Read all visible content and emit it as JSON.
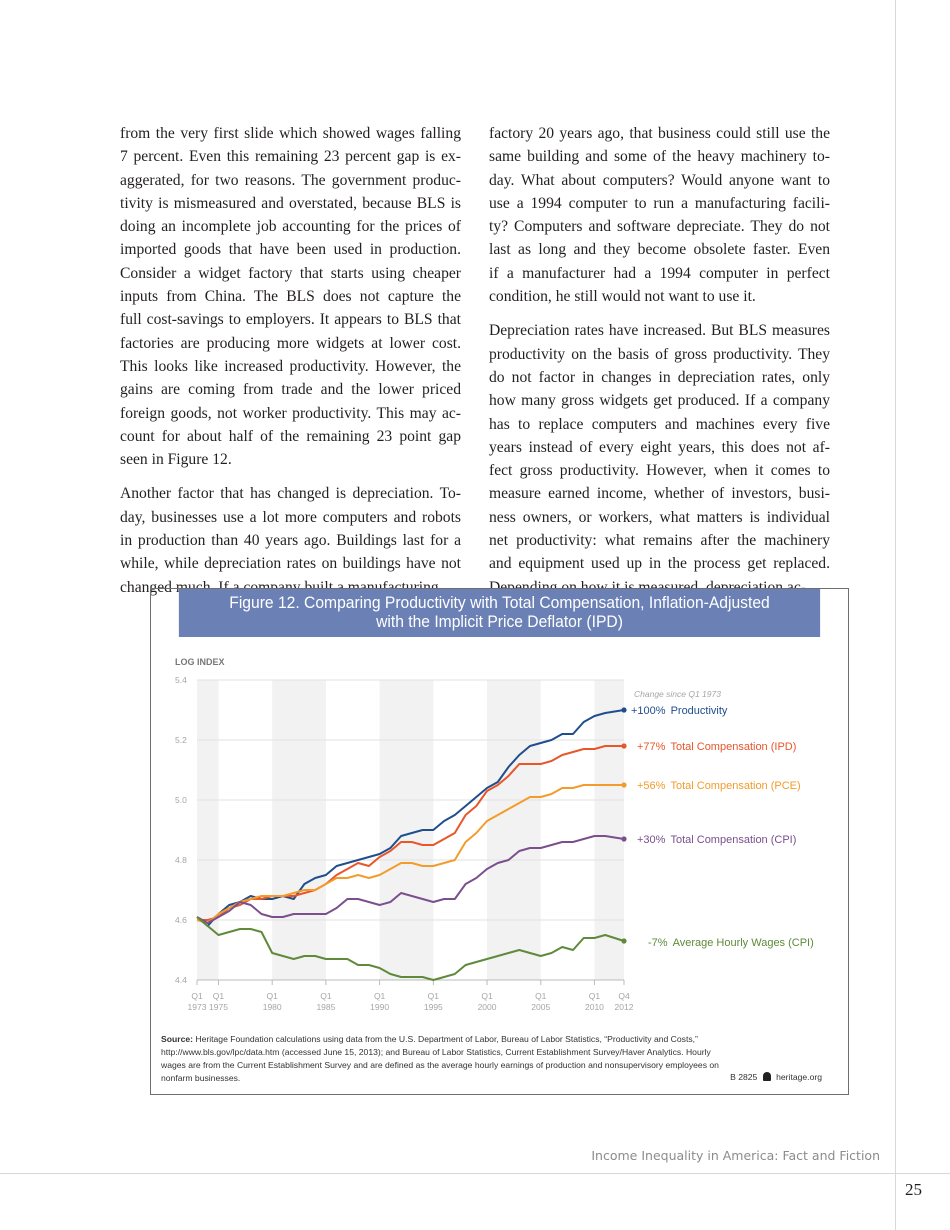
{
  "body": {
    "left_column": [
      [
        "from the very first slide which showed wages falling",
        "7 percent. Even this remaining 23 percent gap is ex-",
        "aggerated, for two reasons. The government produc-",
        "tivity is mismeasured and overstated, because BLS is",
        "doing an incomplete job accounting for the prices of",
        "imported goods that have been used in production.",
        "Consider a widget factory that starts using cheaper",
        "inputs from China. The BLS does not capture the",
        "full cost-savings to employers. It appears to BLS that",
        "factories are producing more widgets at lower cost.",
        "This looks like increased productivity. However, the",
        "gains are coming from trade and the lower priced",
        "foreign goods, not worker productivity. This may ac-",
        "count for about half of the remaining 23 point gap",
        "seen in Figure 12."
      ],
      [
        "Another factor that has changed is depreciation. To-",
        "day, businesses use a lot more computers and robots",
        "in production than 40 years ago. Buildings last for a",
        "while, while depreciation rates on buildings have not",
        "changed much. If a company built a manufacturing"
      ]
    ],
    "right_column": [
      [
        "factory 20 years ago, that business could still use the",
        "same building and some of the heavy machinery to-",
        "day. What about computers? Would anyone want to",
        "use a 1994 computer to run a manufacturing facili-",
        "ty? Computers and software depreciate. They do not",
        "last as long and they become obsolete faster. Even",
        "if a manufacturer had a 1994 computer in perfect",
        "condition, he still would not want to use it."
      ],
      [
        "Depreciation rates have increased. But BLS measures",
        "productivity on the basis of gross productivity. They",
        "do not factor in changes in depreciation rates, only",
        "how many gross widgets get produced. If a company",
        "has to replace computers and machines every five",
        "years instead of every eight years, this does not af-",
        "fect gross productivity. However, when it comes to",
        "measure earned income, whether of investors, busi-",
        "ness owners, or workers, what matters is individual",
        "net productivity: what remains after the machinery",
        "and equipment used up in the process get replaced.",
        "Depending on how it is measured, depreciation ac-"
      ]
    ]
  },
  "figure": {
    "title_line1": "Figure 12. Comparing Productivity with Total Compensation, Inflation-Adjusted",
    "title_line2": "with the Implicit Price Deflator (IPD)",
    "header_color": "#6b80b4",
    "source_label": "Source:",
    "source_text": " Heritage Foundation calculations using data from the U.S. Department of Labor, Bureau of Labor Statistics, “Productivity and Costs,” http://www.bls.gov/lpc/data.htm (accessed June 15, 2013); and Bureau of Labor Statistics, Current Establishment Survey/Haver Analytics. Hourly wages are from the Current Establishment Survey and are defined as the average hourly earnings of production and nonsupervisory employees on nonfarm businesses.",
    "credit_code": "B 2825",
    "credit_icon": "liberty-bell-icon",
    "credit_site": "heritage.org"
  },
  "chart_data": {
    "type": "line",
    "ylabel": "LOG INDEX",
    "ylim": [
      4.4,
      5.4
    ],
    "yticks": [
      "5.4",
      "5.2",
      "5.0",
      "4.8",
      "4.6",
      "4.4"
    ],
    "xlim": [
      1973,
      2012.75
    ],
    "xticks": [
      {
        "x": 1973,
        "q": "Q1",
        "year": "1973"
      },
      {
        "x": 1975,
        "q": "Q1",
        "year": "1975"
      },
      {
        "x": 1980,
        "q": "Q1",
        "year": "1980"
      },
      {
        "x": 1985,
        "q": "Q1",
        "year": "1985"
      },
      {
        "x": 1990,
        "q": "Q1",
        "year": "1990"
      },
      {
        "x": 1995,
        "q": "Q1",
        "year": "1995"
      },
      {
        "x": 2000,
        "q": "Q1",
        "year": "2000"
      },
      {
        "x": 2005,
        "q": "Q1",
        "year": "2005"
      },
      {
        "x": 2010,
        "q": "Q1",
        "year": "2010"
      },
      {
        "x": 2012.75,
        "q": "Q4",
        "year": "2012"
      }
    ],
    "shaded_bands": [
      [
        1973,
        1975
      ],
      [
        1980,
        1985
      ],
      [
        1990,
        1995
      ],
      [
        2000,
        2005
      ],
      [
        2010,
        2012.75
      ]
    ],
    "grid": true,
    "annotation": "Change since Q1 1973",
    "x": [
      1973,
      1974,
      1975,
      1976,
      1977,
      1978,
      1979,
      1980,
      1981,
      1982,
      1983,
      1984,
      1985,
      1986,
      1987,
      1988,
      1989,
      1990,
      1991,
      1992,
      1993,
      1994,
      1995,
      1996,
      1997,
      1998,
      1999,
      2000,
      2001,
      2002,
      2003,
      2004,
      2005,
      2006,
      2007,
      2008,
      2009,
      2010,
      2011,
      2012.75
    ],
    "series": [
      {
        "name": "Productivity",
        "change": "+100%",
        "color": "#1f4e8c",
        "values": [
          4.61,
          4.58,
          4.62,
          4.65,
          4.66,
          4.68,
          4.67,
          4.67,
          4.68,
          4.67,
          4.72,
          4.74,
          4.75,
          4.78,
          4.79,
          4.8,
          4.81,
          4.82,
          4.84,
          4.88,
          4.89,
          4.9,
          4.9,
          4.93,
          4.95,
          4.98,
          5.01,
          5.04,
          5.06,
          5.11,
          5.15,
          5.18,
          5.19,
          5.2,
          5.22,
          5.22,
          5.26,
          5.28,
          5.29,
          5.3
        ]
      },
      {
        "name": "Total Compensation (IPD)",
        "change": "+77%",
        "color": "#e8562a",
        "values": [
          4.6,
          4.6,
          4.61,
          4.64,
          4.65,
          4.67,
          4.67,
          4.68,
          4.68,
          4.68,
          4.69,
          4.7,
          4.72,
          4.75,
          4.77,
          4.79,
          4.78,
          4.81,
          4.83,
          4.86,
          4.86,
          4.85,
          4.85,
          4.87,
          4.89,
          4.95,
          4.98,
          5.03,
          5.05,
          5.08,
          5.12,
          5.12,
          5.12,
          5.13,
          5.15,
          5.16,
          5.17,
          5.17,
          5.18,
          5.18
        ]
      },
      {
        "name": "Total Compensation (PCE)",
        "change": "+56%",
        "color": "#f39c2b",
        "values": [
          4.6,
          4.59,
          4.62,
          4.64,
          4.66,
          4.67,
          4.68,
          4.68,
          4.68,
          4.69,
          4.7,
          4.7,
          4.72,
          4.74,
          4.74,
          4.75,
          4.74,
          4.75,
          4.77,
          4.79,
          4.79,
          4.78,
          4.78,
          4.79,
          4.8,
          4.86,
          4.89,
          4.93,
          4.95,
          4.97,
          4.99,
          5.01,
          5.01,
          5.02,
          5.04,
          5.04,
          5.05,
          5.05,
          5.05,
          5.05
        ]
      },
      {
        "name": "Total Compensation (CPI)",
        "change": "+30%",
        "color": "#7b4f8e",
        "values": [
          4.61,
          4.59,
          4.61,
          4.63,
          4.66,
          4.65,
          4.62,
          4.61,
          4.61,
          4.62,
          4.62,
          4.62,
          4.62,
          4.64,
          4.67,
          4.67,
          4.66,
          4.65,
          4.66,
          4.69,
          4.68,
          4.67,
          4.66,
          4.67,
          4.67,
          4.72,
          4.74,
          4.77,
          4.79,
          4.8,
          4.83,
          4.84,
          4.84,
          4.85,
          4.86,
          4.86,
          4.87,
          4.88,
          4.88,
          4.87
        ]
      },
      {
        "name": "Average Hourly Wages (CPI)",
        "change": "-7%",
        "color": "#5e8a3a",
        "values": [
          4.61,
          4.58,
          4.55,
          4.56,
          4.57,
          4.57,
          4.56,
          4.49,
          4.48,
          4.47,
          4.48,
          4.48,
          4.47,
          4.47,
          4.47,
          4.45,
          4.45,
          4.44,
          4.42,
          4.41,
          4.41,
          4.41,
          4.4,
          4.41,
          4.42,
          4.45,
          4.46,
          4.47,
          4.48,
          4.49,
          4.5,
          4.49,
          4.48,
          4.49,
          4.51,
          4.5,
          4.54,
          4.54,
          4.55,
          4.53
        ]
      }
    ]
  },
  "footer": {
    "running_title": "Income Inequality in America: Fact and Fiction",
    "page_number": "25"
  }
}
